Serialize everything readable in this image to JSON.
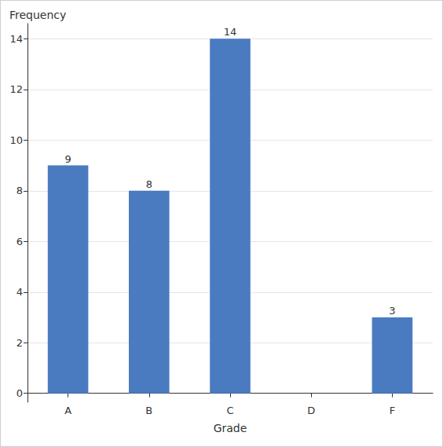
{
  "chart_data": {
    "type": "bar",
    "title": "Frequency",
    "x_label": "Grade",
    "categories": [
      "A",
      "B",
      "C",
      "D",
      "F"
    ],
    "values": [
      9,
      8,
      14,
      null,
      3
    ],
    "color": "#4a7bc1",
    "ylim": [
      -0.35,
      14.6
    ],
    "yticks": [
      0,
      2,
      4,
      6,
      8,
      10,
      12,
      14
    ],
    "grid": true,
    "data_labels": true
  }
}
